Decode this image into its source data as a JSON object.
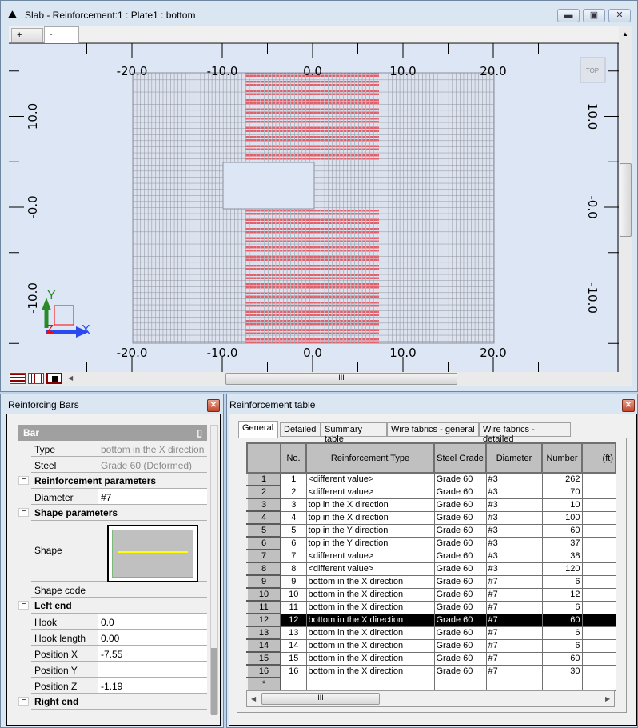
{
  "view_window": {
    "title": "Slab - Reinforcement:1 : Plate1  : bottom",
    "tabs": [
      "+",
      "-"
    ],
    "view_cube_label": "TOP",
    "x_axis_labels": [
      "-20.0",
      "-10.0",
      "0.0",
      "10.0",
      "20.0"
    ],
    "y_axis_labels_left": [
      "10.0",
      "-0.0",
      "-10.0"
    ],
    "y_axis_labels_right": [
      "10.0",
      "-0.0",
      "-10.0"
    ],
    "axis_x": "X",
    "axis_y": "Y",
    "axis_z": "Z",
    "scroll_grip": "III",
    "colors": {
      "background": "#dce6f5",
      "mesh": "#8c8f99",
      "reinforcement": "#e0606a"
    }
  },
  "bars_panel": {
    "title": "Reinforcing Bars",
    "header": "Bar",
    "rows": [
      {
        "kind": "prop",
        "label": "Type",
        "value": "bottom in the X direction",
        "readonly": true
      },
      {
        "kind": "prop",
        "label": "Steel",
        "value": "Grade 60 (Deformed)",
        "readonly": true
      },
      {
        "kind": "cat",
        "label": "Reinforcement parameters"
      },
      {
        "kind": "prop",
        "label": "Diameter",
        "value": "#7"
      },
      {
        "kind": "cat",
        "label": "Shape parameters"
      },
      {
        "kind": "shape",
        "label": "Shape"
      },
      {
        "kind": "prop",
        "label": "Shape code",
        "value": "",
        "readonly": true
      },
      {
        "kind": "cat",
        "label": "Left end"
      },
      {
        "kind": "prop",
        "label": "Hook",
        "value": "0.0"
      },
      {
        "kind": "prop",
        "label": "Hook length",
        "value": "0.00"
      },
      {
        "kind": "prop",
        "label": "Position X",
        "value": "-7.55"
      },
      {
        "kind": "prop",
        "label": "Position Y",
        "value": ""
      },
      {
        "kind": "prop",
        "label": "Position Z",
        "value": "-1.19"
      },
      {
        "kind": "cat",
        "label": "Right end"
      }
    ]
  },
  "table_panel": {
    "title": "Reinforcement table",
    "tabs": [
      "General",
      "Detailed",
      "Summary table",
      "Wire fabrics - general",
      "Wire fabrics - detailed"
    ],
    "active_tab": "General",
    "columns": [
      "",
      "No.",
      "Reinforcement Type",
      "Steel Grade",
      "Diameter",
      "Number",
      "(ft)"
    ],
    "selected_row": 12,
    "rows": [
      [
        "1",
        "1",
        "<different value>",
        "Grade 60",
        "#3",
        "262"
      ],
      [
        "2",
        "2",
        "<different value>",
        "Grade 60",
        "#3",
        "70"
      ],
      [
        "3",
        "3",
        "top in the X direction",
        "Grade 60",
        "#3",
        "10"
      ],
      [
        "4",
        "4",
        "top in the X direction",
        "Grade 60",
        "#3",
        "100"
      ],
      [
        "5",
        "5",
        "top in the Y direction",
        "Grade 60",
        "#3",
        "60"
      ],
      [
        "6",
        "6",
        "top in the Y direction",
        "Grade 60",
        "#3",
        "37"
      ],
      [
        "7",
        "7",
        "<different value>",
        "Grade 60",
        "#3",
        "38"
      ],
      [
        "8",
        "8",
        "<different value>",
        "Grade 60",
        "#3",
        "120"
      ],
      [
        "9",
        "9",
        "bottom in the X direction",
        "Grade 60",
        "#7",
        "6"
      ],
      [
        "10",
        "10",
        "bottom in the X direction",
        "Grade 60",
        "#7",
        "12"
      ],
      [
        "11",
        "11",
        "bottom in the X direction",
        "Grade 60",
        "#7",
        "6"
      ],
      [
        "12",
        "12",
        "bottom in the X direction",
        "Grade 60",
        "#7",
        "60"
      ],
      [
        "13",
        "13",
        "bottom in the X direction",
        "Grade 60",
        "#7",
        "6"
      ],
      [
        "14",
        "14",
        "bottom in the X direction",
        "Grade 60",
        "#7",
        "6"
      ],
      [
        "15",
        "15",
        "bottom in the X direction",
        "Grade 60",
        "#7",
        "60"
      ],
      [
        "16",
        "16",
        "bottom in the X direction",
        "Grade 60",
        "#7",
        "30"
      ]
    ],
    "new_row_marker": "*",
    "scroll_grip": "III"
  }
}
